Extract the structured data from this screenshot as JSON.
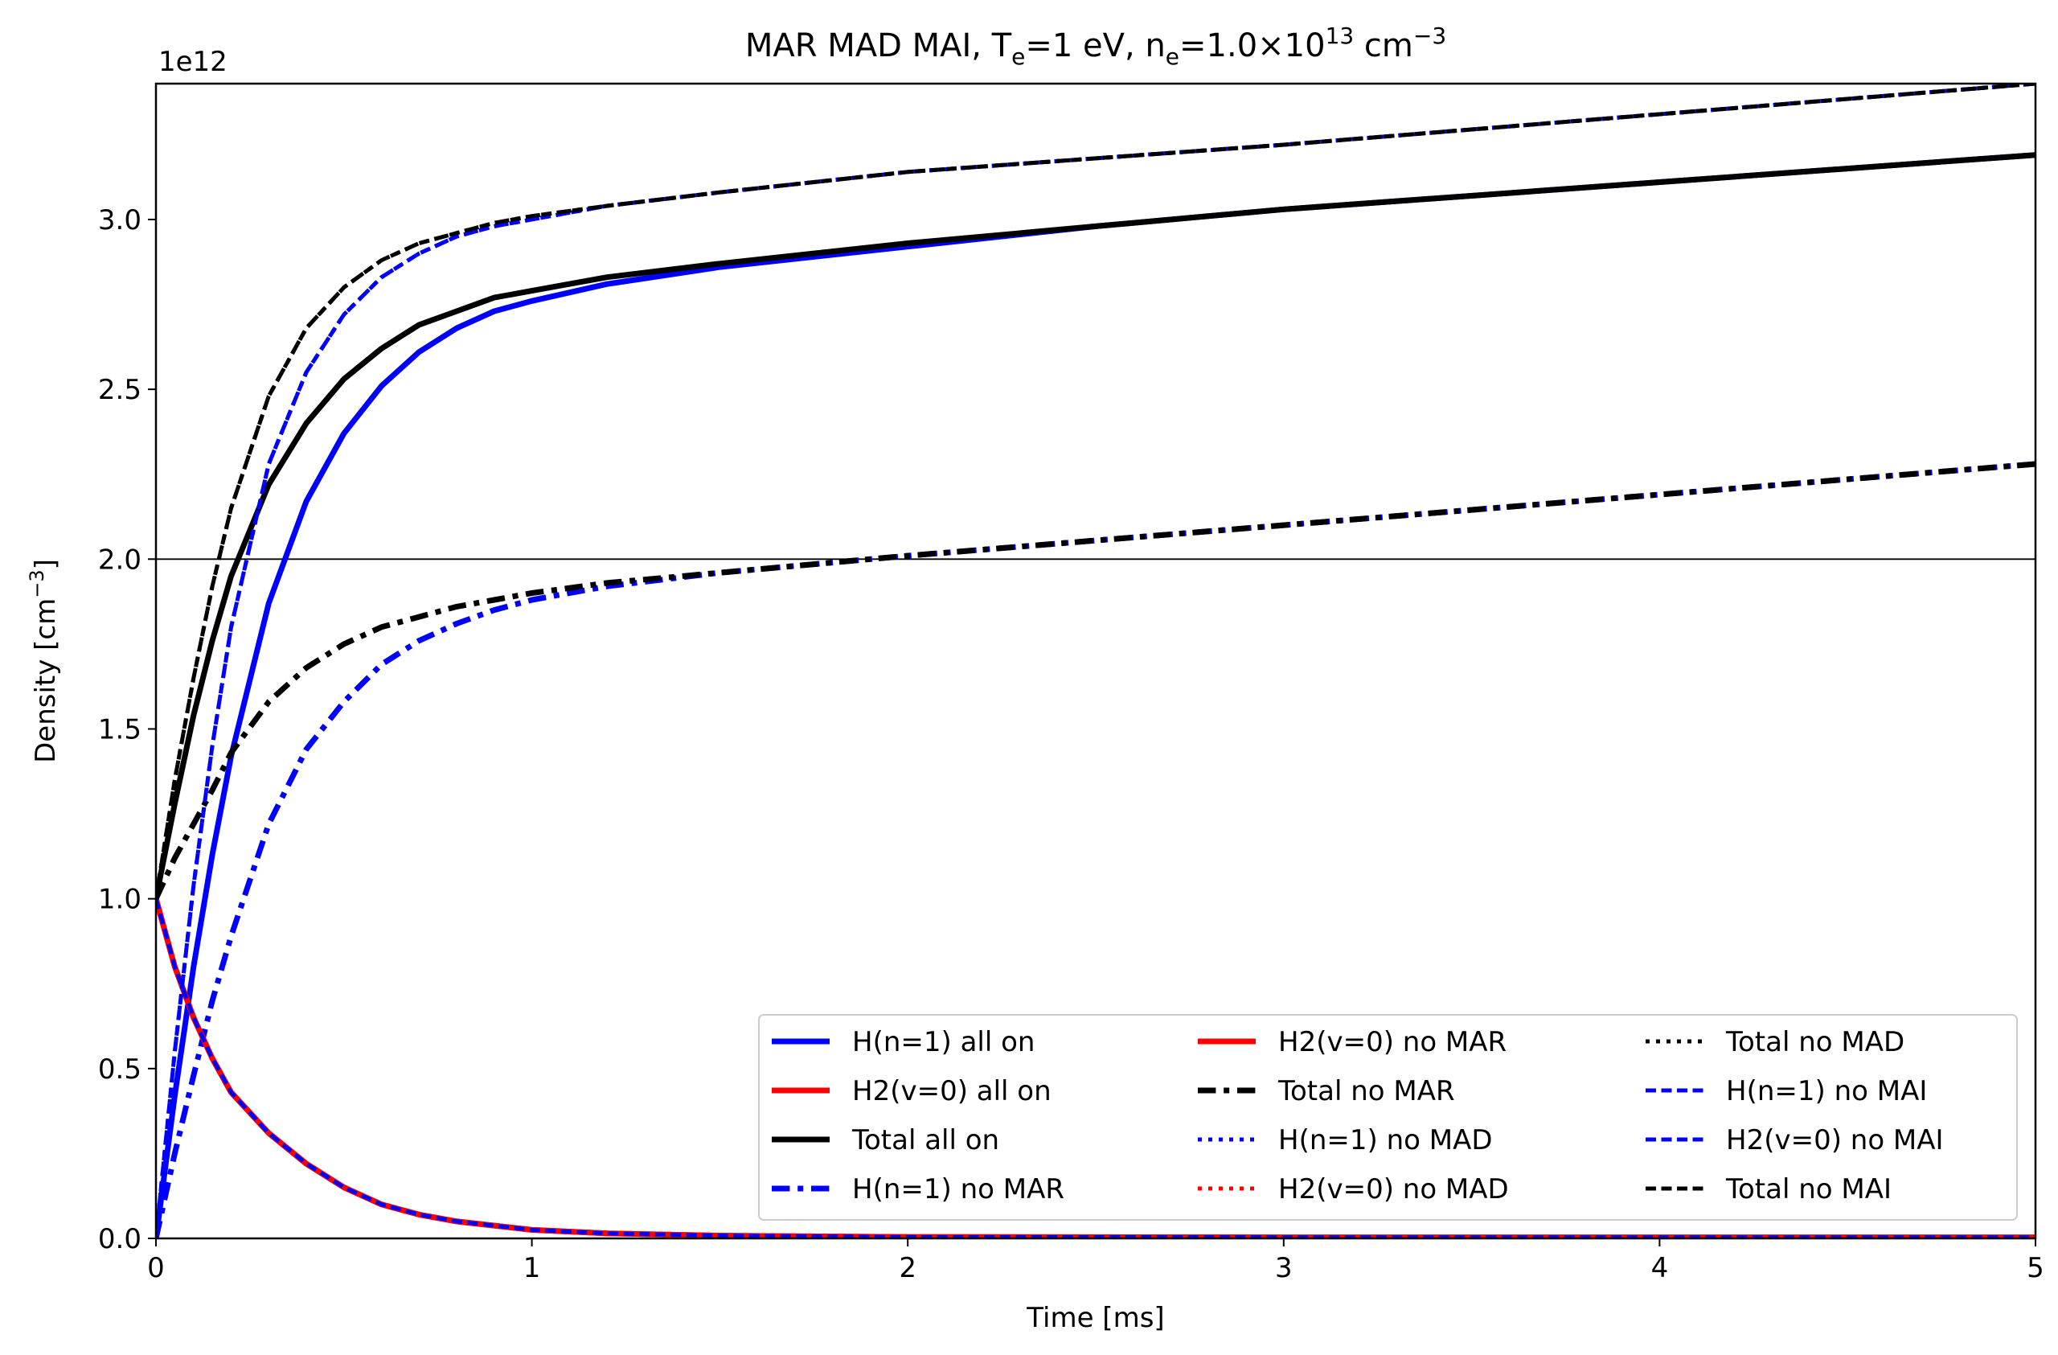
{
  "chart_data": {
    "type": "line",
    "title": "MAR MAD MAI,  Te=1 eV, ne=1.0×10^13 cm^-3",
    "title_parts": {
      "lead": "MAR MAD MAI,  T",
      "te_sub": "e",
      "te_val": "=1 eV, n",
      "ne_sub": "e",
      "ne_val": "=1.0×10",
      "ne_exp": "13",
      "unit": " cm",
      "unit_exp": "−3"
    },
    "xlabel": "Time [ms]",
    "ylabel_main": "Density [cm",
    "ylabel_exp": "−3",
    "ylabel_close": "]",
    "offset_text": "1e12",
    "xlim": [
      0,
      5
    ],
    "ylim": [
      0,
      3.4
    ],
    "y_unit_multiplier": 1000000000000.0,
    "xticks": [
      0,
      1,
      2,
      3,
      4,
      5
    ],
    "xtick_labels": [
      "0",
      "1",
      "2",
      "3",
      "4",
      "5"
    ],
    "yticks": [
      0,
      0.5,
      1.0,
      1.5,
      2.0,
      2.5,
      3.0
    ],
    "ytick_labels": [
      "0.0",
      "0.5",
      "1.0",
      "1.5",
      "2.0",
      "2.5",
      "3.0"
    ],
    "hline_y": 2.0,
    "legend_position": "lower right",
    "legend_columns": 3,
    "colors": {
      "blue": "#0000ff",
      "red": "#ff0000",
      "black": "#000000"
    },
    "series": [
      {
        "name": "H(n=1) all on",
        "color": "#0000ff",
        "style": "solid",
        "width": "thick",
        "x": [
          0,
          0.05,
          0.1,
          0.15,
          0.2,
          0.3,
          0.4,
          0.5,
          0.6,
          0.7,
          0.8,
          0.9,
          1.0,
          1.2,
          1.5,
          2.0,
          2.5,
          3.0,
          4.0,
          5.0
        ],
        "y": [
          0,
          0.42,
          0.8,
          1.13,
          1.42,
          1.87,
          2.17,
          2.37,
          2.51,
          2.61,
          2.68,
          2.73,
          2.76,
          2.81,
          2.86,
          2.92,
          2.98,
          3.03,
          3.11,
          3.19
        ]
      },
      {
        "name": "H2(v=0) all on",
        "color": "#ff0000",
        "style": "solid",
        "width": "thick",
        "x": [
          0,
          0.05,
          0.1,
          0.15,
          0.2,
          0.3,
          0.4,
          0.5,
          0.6,
          0.7,
          0.8,
          1.0,
          1.2,
          1.5,
          2.0,
          3.0,
          4.0,
          5.0
        ],
        "y": [
          1.0,
          0.8,
          0.65,
          0.53,
          0.43,
          0.31,
          0.22,
          0.15,
          0.1,
          0.07,
          0.05,
          0.025,
          0.015,
          0.008,
          0.004,
          0.003,
          0.003,
          0.003
        ]
      },
      {
        "name": "Total all on",
        "color": "#000000",
        "style": "solid",
        "width": "thick",
        "x": [
          0,
          0.05,
          0.1,
          0.15,
          0.2,
          0.3,
          0.4,
          0.5,
          0.6,
          0.7,
          0.8,
          0.9,
          1.0,
          1.2,
          1.5,
          2.0,
          2.5,
          3.0,
          4.0,
          5.0
        ],
        "y": [
          1.0,
          1.28,
          1.54,
          1.76,
          1.95,
          2.22,
          2.4,
          2.53,
          2.62,
          2.69,
          2.73,
          2.77,
          2.79,
          2.83,
          2.87,
          2.93,
          2.98,
          3.03,
          3.11,
          3.19
        ]
      },
      {
        "name": "H(n=1) no MAR",
        "color": "#0000ff",
        "style": "dashdot",
        "width": "thick",
        "x": [
          0,
          0.05,
          0.1,
          0.15,
          0.2,
          0.3,
          0.4,
          0.5,
          0.6,
          0.7,
          0.8,
          0.9,
          1.0,
          1.2,
          1.5,
          2.0,
          3.0,
          4.0,
          5.0
        ],
        "y": [
          0,
          0.25,
          0.48,
          0.7,
          0.89,
          1.22,
          1.44,
          1.58,
          1.69,
          1.76,
          1.81,
          1.85,
          1.88,
          1.92,
          1.96,
          2.01,
          2.1,
          2.19,
          2.28
        ]
      },
      {
        "name": "H2(v=0) no MAR",
        "color": "#ff0000",
        "style": "solid",
        "width": "thick",
        "x": [
          0,
          0.05,
          0.1,
          0.15,
          0.2,
          0.3,
          0.4,
          0.5,
          0.6,
          0.7,
          0.8,
          1.0,
          1.2,
          1.5,
          2.0,
          3.0,
          4.0,
          5.0
        ],
        "y": [
          1.0,
          0.8,
          0.65,
          0.53,
          0.43,
          0.31,
          0.22,
          0.15,
          0.1,
          0.07,
          0.05,
          0.025,
          0.015,
          0.008,
          0.004,
          0.003,
          0.003,
          0.003
        ]
      },
      {
        "name": "Total no MAR",
        "color": "#000000",
        "style": "dashdot",
        "width": "thick",
        "x": [
          0,
          0.05,
          0.1,
          0.15,
          0.2,
          0.3,
          0.4,
          0.5,
          0.6,
          0.7,
          0.8,
          0.9,
          1.0,
          1.2,
          1.5,
          2.0,
          3.0,
          4.0,
          5.0
        ],
        "y": [
          1.0,
          1.12,
          1.22,
          1.32,
          1.43,
          1.58,
          1.68,
          1.75,
          1.8,
          1.83,
          1.86,
          1.88,
          1.9,
          1.93,
          1.96,
          2.01,
          2.1,
          2.19,
          2.28
        ]
      },
      {
        "name": "H(n=1) no MAD",
        "color": "#0000ff",
        "style": "dotted",
        "width": "medium",
        "x": [
          0,
          0.05,
          0.1,
          0.15,
          0.2,
          0.3,
          0.4,
          0.5,
          0.6,
          0.7,
          0.8,
          0.9,
          1.0,
          1.2,
          1.5,
          2.0,
          3.0,
          4.0,
          5.0
        ],
        "y": [
          0,
          0.55,
          1.04,
          1.45,
          1.8,
          2.28,
          2.55,
          2.72,
          2.83,
          2.9,
          2.95,
          2.98,
          3.0,
          3.04,
          3.08,
          3.14,
          3.22,
          3.31,
          3.4
        ]
      },
      {
        "name": "H2(v=0) no MAD",
        "color": "#ff0000",
        "style": "dotted",
        "width": "medium",
        "x": [
          0,
          0.05,
          0.1,
          0.15,
          0.2,
          0.3,
          0.4,
          0.5,
          0.6,
          0.7,
          0.8,
          1.0,
          1.2,
          1.5,
          2.0,
          3.0,
          4.0,
          5.0
        ],
        "y": [
          1.0,
          0.8,
          0.65,
          0.53,
          0.43,
          0.31,
          0.22,
          0.15,
          0.1,
          0.07,
          0.05,
          0.025,
          0.015,
          0.008,
          0.004,
          0.003,
          0.003,
          0.003
        ]
      },
      {
        "name": "Total no MAD",
        "color": "#000000",
        "style": "dotted",
        "width": "medium",
        "x": [
          0,
          0.05,
          0.1,
          0.15,
          0.2,
          0.3,
          0.4,
          0.5,
          0.6,
          0.7,
          0.8,
          0.9,
          1.0,
          1.2,
          1.5,
          2.0,
          3.0,
          4.0,
          5.0
        ],
        "y": [
          1.0,
          1.35,
          1.65,
          1.92,
          2.15,
          2.48,
          2.68,
          2.8,
          2.88,
          2.93,
          2.96,
          2.99,
          3.01,
          3.04,
          3.08,
          3.14,
          3.22,
          3.31,
          3.4
        ]
      },
      {
        "name": "H(n=1) no MAI",
        "color": "#0000ff",
        "style": "dashed",
        "width": "medium",
        "x": [
          0,
          0.05,
          0.1,
          0.15,
          0.2,
          0.3,
          0.4,
          0.5,
          0.6,
          0.7,
          0.8,
          0.9,
          1.0,
          1.2,
          1.5,
          2.0,
          3.0,
          4.0,
          5.0
        ],
        "y": [
          0,
          0.55,
          1.04,
          1.45,
          1.8,
          2.28,
          2.55,
          2.72,
          2.83,
          2.9,
          2.95,
          2.98,
          3.0,
          3.04,
          3.08,
          3.14,
          3.22,
          3.31,
          3.4
        ]
      },
      {
        "name": "H2(v=0) no MAI",
        "color": "#0000ff",
        "style": "dashed",
        "width": "medium",
        "x": [
          0,
          0.05,
          0.1,
          0.15,
          0.2,
          0.3,
          0.4,
          0.5,
          0.6,
          0.7,
          0.8,
          1.0,
          1.2,
          1.5,
          2.0,
          3.0,
          4.0,
          5.0
        ],
        "y": [
          1.0,
          0.8,
          0.65,
          0.53,
          0.43,
          0.31,
          0.22,
          0.15,
          0.1,
          0.07,
          0.05,
          0.025,
          0.015,
          0.008,
          0.004,
          0.003,
          0.003,
          0.003
        ]
      },
      {
        "name": "Total no MAI",
        "color": "#000000",
        "style": "dashed",
        "width": "medium",
        "x": [
          0,
          0.05,
          0.1,
          0.15,
          0.2,
          0.3,
          0.4,
          0.5,
          0.6,
          0.7,
          0.8,
          0.9,
          1.0,
          1.2,
          1.5,
          2.0,
          3.0,
          4.0,
          5.0
        ],
        "y": [
          1.0,
          1.35,
          1.65,
          1.92,
          2.15,
          2.48,
          2.68,
          2.8,
          2.88,
          2.93,
          2.96,
          2.99,
          3.01,
          3.04,
          3.08,
          3.14,
          3.22,
          3.31,
          3.4
        ]
      }
    ]
  }
}
